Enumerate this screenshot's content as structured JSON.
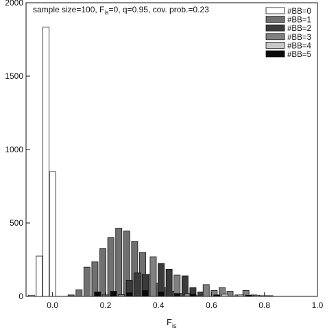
{
  "chart_data": {
    "type": "bar",
    "title_parts": [
      "sample size=100, F",
      "is",
      "=0, q=0.95, cov. prob.=0.23"
    ],
    "xlabel_parts": [
      "F",
      "is"
    ],
    "xlim": [
      -0.1,
      1.0
    ],
    "ylim": [
      0,
      2000
    ],
    "xticks": [
      0.0,
      0.2,
      0.4,
      0.6,
      0.8,
      1.0
    ],
    "xtick_labels": [
      "0.0",
      "0.2",
      "0.4",
      "0.6",
      "0.8",
      "1.0"
    ],
    "yticks": [
      0,
      500,
      1000,
      1500,
      2000
    ],
    "ytick_labels": [
      "0",
      "500",
      "1000",
      "1500",
      "2000"
    ],
    "grid": false,
    "legend_position": "top-right",
    "bin_width": 0.03,
    "series": [
      {
        "name": "#BB=0",
        "fill": "#ffffff",
        "bars": [
          {
            "x": -0.08,
            "y": 8
          },
          {
            "x": -0.05,
            "y": 275
          },
          {
            "x": -0.025,
            "y": 1835
          },
          {
            "x": 0.0,
            "y": 850
          }
        ]
      },
      {
        "name": "#BB=1",
        "fill": "#707070",
        "bars": [
          {
            "x": 0.07,
            "y": 10
          },
          {
            "x": 0.1,
            "y": 45
          },
          {
            "x": 0.13,
            "y": 200
          },
          {
            "x": 0.16,
            "y": 235
          },
          {
            "x": 0.19,
            "y": 325
          },
          {
            "x": 0.22,
            "y": 400
          },
          {
            "x": 0.25,
            "y": 465
          },
          {
            "x": 0.28,
            "y": 445
          },
          {
            "x": 0.31,
            "y": 375
          },
          {
            "x": 0.34,
            "y": 300
          },
          {
            "x": 0.37,
            "y": 150
          },
          {
            "x": 0.4,
            "y": 90
          },
          {
            "x": 0.43,
            "y": 60
          },
          {
            "x": 0.46,
            "y": 35
          },
          {
            "x": 0.49,
            "y": 20
          },
          {
            "x": 0.52,
            "y": 12
          },
          {
            "x": 0.55,
            "y": 5
          }
        ]
      },
      {
        "name": "#BB=2",
        "fill": "#3a3a3a",
        "bars": [
          {
            "x": 0.29,
            "y": 110
          },
          {
            "x": 0.32,
            "y": 160
          },
          {
            "x": 0.35,
            "y": 150
          },
          {
            "x": 0.41,
            "y": 225
          },
          {
            "x": 0.44,
            "y": 185
          },
          {
            "x": 0.5,
            "y": 140
          },
          {
            "x": 0.53,
            "y": 60
          },
          {
            "x": 0.56,
            "y": 30
          }
        ]
      },
      {
        "name": "#BB=3",
        "fill": "#808080",
        "bars": [
          {
            "x": 0.2,
            "y": 10
          },
          {
            "x": 0.26,
            "y": 12
          },
          {
            "x": 0.38,
            "y": 270
          },
          {
            "x": 0.47,
            "y": 145
          },
          {
            "x": 0.51,
            "y": 20
          },
          {
            "x": 0.58,
            "y": 80
          },
          {
            "x": 0.61,
            "y": 40
          },
          {
            "x": 0.64,
            "y": 60
          },
          {
            "x": 0.67,
            "y": 35
          },
          {
            "x": 0.7,
            "y": 10
          },
          {
            "x": 0.73,
            "y": 40
          },
          {
            "x": 0.76,
            "y": 10
          },
          {
            "x": 0.79,
            "y": 5
          },
          {
            "x": 0.82,
            "y": 5
          }
        ]
      },
      {
        "name": "#BB=4",
        "fill": "#c8c8c8",
        "bars": [
          {
            "x": 0.65,
            "y": 15
          },
          {
            "x": 0.71,
            "y": 10
          },
          {
            "x": 0.77,
            "y": 8
          },
          {
            "x": 0.8,
            "y": 5
          }
        ]
      },
      {
        "name": "#BB=5",
        "fill": "#0a0a0a",
        "bars": [
          {
            "x": 0.17,
            "y": 30
          },
          {
            "x": 0.23,
            "y": 35
          },
          {
            "x": 0.29,
            "y": 25
          },
          {
            "x": 0.35,
            "y": 40
          },
          {
            "x": 0.41,
            "y": 30
          },
          {
            "x": 0.47,
            "y": 20
          },
          {
            "x": 0.53,
            "y": 15
          },
          {
            "x": 0.62,
            "y": 10
          },
          {
            "x": 0.74,
            "y": 8
          }
        ]
      }
    ]
  }
}
